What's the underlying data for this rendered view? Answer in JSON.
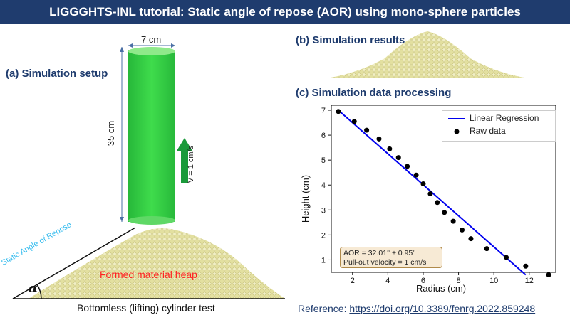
{
  "title": "LIGGGHTS-INL tutorial: Static angle of repose (AOR) using mono-sphere particles",
  "panels": {
    "a_label": "(a) Simulation setup",
    "b_label": "(b) Simulation results",
    "c_label": "(c) Simulation data processing"
  },
  "setup": {
    "width_label": "7 cm",
    "height_label": "35 cm",
    "velocity_label": "V = 1 cm/s",
    "angle_label": "Static Angle of Repose",
    "alpha_symbol": "α",
    "heap_label": "Formed material heap",
    "caption": "Bottomless (lifting) cylinder test",
    "colors": {
      "cylinder": "#2ecc40",
      "arrow": "#1a9a3a",
      "heap": "#e8e6b0",
      "angle_text": "#33bbee",
      "heap_text": "#ff2222"
    }
  },
  "chart_data": {
    "type": "scatter",
    "xlabel": "Radius (cm)",
    "ylabel": "Height (cm)",
    "xlim": [
      0.8,
      13.5
    ],
    "ylim": [
      0.5,
      7.2
    ],
    "xticks": [
      2,
      4,
      6,
      8,
      10,
      12
    ],
    "yticks": [
      1,
      2,
      3,
      4,
      5,
      6,
      7
    ],
    "legend": [
      "Linear Regression",
      "Raw data"
    ],
    "legend_position": "top-right",
    "series": [
      {
        "name": "Linear Regression",
        "type": "line",
        "color": "#0000ee",
        "x": [
          1.2,
          11.8
        ],
        "y": [
          7.0,
          0.4
        ]
      },
      {
        "name": "Raw data",
        "type": "scatter",
        "color": "#000000",
        "x": [
          1.2,
          2.1,
          2.8,
          3.5,
          4.1,
          4.6,
          5.1,
          5.6,
          6.0,
          6.4,
          6.8,
          7.2,
          7.7,
          8.2,
          8.7,
          9.6,
          10.7,
          11.8,
          13.1
        ],
        "y": [
          6.95,
          6.55,
          6.2,
          5.85,
          5.45,
          5.1,
          4.75,
          4.4,
          4.05,
          3.65,
          3.3,
          2.9,
          2.55,
          2.2,
          1.85,
          1.45,
          1.1,
          0.75,
          0.4
        ]
      }
    ],
    "annotation_lines": [
      "AOR = 32.01° ± 0.95°",
      "Pull-out velocity = 1 cm/s"
    ]
  },
  "reference": {
    "prefix": "Reference: ",
    "link": "https://doi.org/10.3389/fenrg.2022.859248"
  }
}
